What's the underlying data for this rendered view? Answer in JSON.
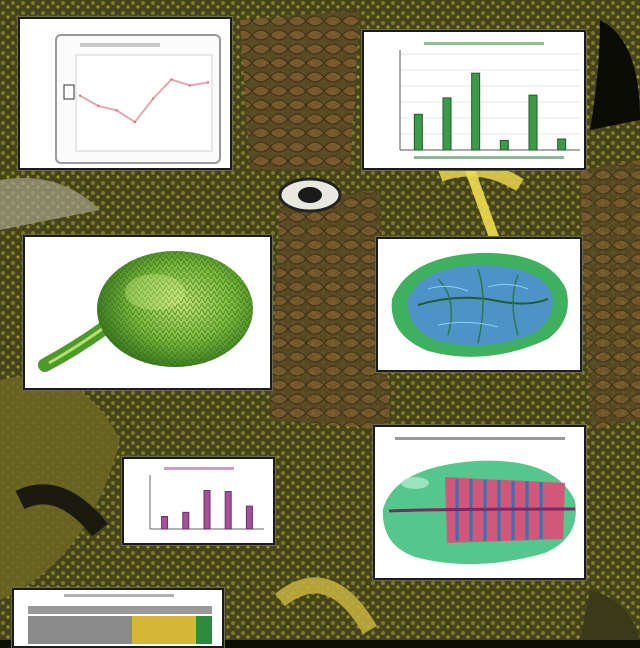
{
  "scene": {
    "description_colors": {
      "bark_dark": "#1b1a0c",
      "moss_olive": "#6c6a2a",
      "lichen_yellow": "#d7c24a",
      "rust_brown": "#7b4a2e",
      "sage_green": "#7e8a50",
      "panel_white": "#ffffff",
      "panel_border": "#1c1c1c"
    }
  },
  "panels": {
    "line_chart": {
      "frame_color": "#d9d9d9",
      "line_color": "#e7a6ae",
      "has_legend": true
    },
    "bar_chart_top": {
      "bar_color": "#3c9b49",
      "bar_color_dark": "#1e5a2a"
    },
    "bud_specimen": {
      "icon": "spiky-bud-icon",
      "colors": [
        "#77b63a",
        "#4b8a28",
        "#b9df62"
      ]
    },
    "leaf_specimen": {
      "icon": "leaf-cross-section-icon",
      "colors": [
        "#45b46a",
        "#4a8fc6",
        "#2a6b3a"
      ]
    },
    "bar_chart_bottom": {
      "bar_color": "#a6509a",
      "bar_color_dark": "#6b2d66"
    },
    "seed_section": {
      "icon": "seed-cross-section-icon",
      "colors": [
        "#52c48a",
        "#e04a76",
        "#2b75b8"
      ]
    },
    "table_strip": {
      "colors": [
        "#8a8a8a",
        "#d1b234",
        "#2e8a3f"
      ]
    }
  },
  "chart_data": [
    {
      "type": "line",
      "title": "",
      "xlabel": "",
      "ylabel": "",
      "x": [
        1,
        2,
        3,
        4,
        5,
        6,
        7,
        8
      ],
      "y": [
        3.5,
        2.8,
        2.5,
        1.7,
        3.3,
        4.6,
        4.2,
        4.4
      ],
      "ylim": [
        0,
        6
      ],
      "grid": false
    },
    {
      "type": "bar",
      "title": "",
      "xlabel": "",
      "ylabel": "",
      "categories": [
        "",
        "",
        "",
        "",
        "",
        ""
      ],
      "values": [
        2.6,
        3.8,
        5.6,
        0.7,
        4.0,
        0.8
      ],
      "ylim": [
        0,
        7
      ],
      "grid": true
    },
    {
      "type": "bar",
      "title": "",
      "xlabel": "",
      "ylabel": "",
      "categories": [
        "",
        "",
        "",
        "",
        ""
      ],
      "values": [
        1.2,
        1.6,
        3.7,
        3.6,
        2.2
      ],
      "ylim": [
        0,
        5
      ],
      "grid": false
    }
  ]
}
